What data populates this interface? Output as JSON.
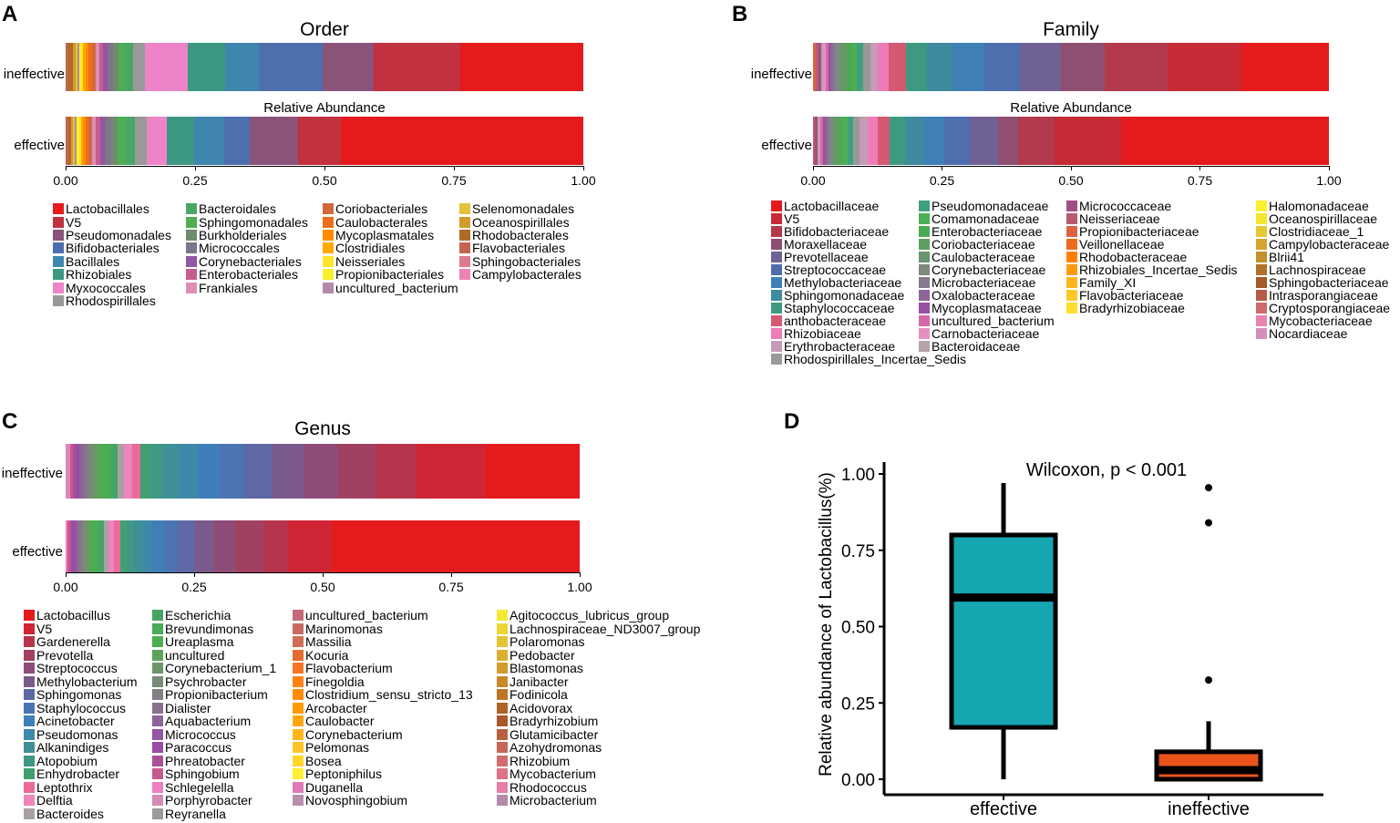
{
  "panels": {
    "A": {
      "label": "A",
      "title": "Order",
      "ra_label": "Relative Abundance",
      "rows": [
        {
          "name": "ineffective",
          "segments": [
            0.005,
            0.008,
            0.004,
            0.003,
            0.004,
            0.003,
            0.004,
            0.004,
            0.005,
            0.006,
            0.006,
            0.007,
            0.006,
            0.008,
            0.009,
            0.01,
            0.012,
            0.014,
            0.02,
            0.075,
            0.065,
            0.06,
            0.11,
            0.09,
            0.15,
            0.215
          ]
        },
        {
          "name": "effective",
          "segments": [
            0.005,
            0.006,
            0.004,
            0.003,
            0.004,
            0.004,
            0.004,
            0.005,
            0.005,
            0.006,
            0.007,
            0.007,
            0.008,
            0.01,
            0.012,
            0.014,
            0.016,
            0.018,
            0.022,
            0.04,
            0.055,
            0.06,
            0.05,
            0.095,
            0.085,
            0.48
          ]
        }
      ],
      "ticks": [
        "0.00",
        "0.25",
        "0.50",
        "0.75",
        "1.00"
      ],
      "legend_columns": [
        [
          {
            "label": "Lactobacillales",
            "color": "#E41A1C"
          },
          {
            "label": "V5",
            "color": "#C2313F"
          },
          {
            "label": "Pseudomonadales",
            "color": "#8A537A"
          },
          {
            "label": "Bifidobacteriales",
            "color": "#4E6FAE"
          },
          {
            "label": "Bacillales",
            "color": "#3F86AE"
          },
          {
            "label": "Rhizobiales",
            "color": "#3C9882"
          },
          {
            "label": "Myxococcales",
            "color": "#EE84C8"
          },
          {
            "label": "Rhodospirillales",
            "color": "#999999"
          }
        ],
        [
          {
            "label": "Bacteroidales",
            "color": "#4AA665"
          },
          {
            "label": "Sphingomonadales",
            "color": "#4FAE51"
          },
          {
            "label": "Burkholderiales",
            "color": "#6E8B6E"
          },
          {
            "label": "Micrococcales",
            "color": "#80748A"
          },
          {
            "label": "Corynebacteriales",
            "color": "#9156A4"
          },
          {
            "label": "Enterobacteriales",
            "color": "#C75C8E"
          },
          {
            "label": "Frankiales",
            "color": "#DE8FB3"
          }
        ],
        [
          {
            "label": "Coriobacteriales",
            "color": "#D2693C"
          },
          {
            "label": "Caulobacterales",
            "color": "#EA6F1E"
          },
          {
            "label": "Mycoplasmatales",
            "color": "#FF8C00"
          },
          {
            "label": "Clostridiales",
            "color": "#FFA800"
          },
          {
            "label": "Neisseriales",
            "color": "#FFE528"
          },
          {
            "label": "Propionibacteriales",
            "color": "#F7F02E"
          },
          {
            "label": "uncultured_bacterium",
            "color": "#B38AA8"
          }
        ],
        [
          {
            "label": "Selenomonadales",
            "color": "#E3C23A"
          },
          {
            "label": "Oceanospirillales",
            "color": "#D29C2C"
          },
          {
            "label": "Rhodobacterales",
            "color": "#AF6B28"
          },
          {
            "label": "Flavobacteriales",
            "color": "#C46452"
          },
          {
            "label": "Sphingobacteriales",
            "color": "#DD7A8F"
          },
          {
            "label": "Campylobacterales",
            "color": "#EE83B5"
          }
        ]
      ]
    },
    "B": {
      "label": "B",
      "title": "Family",
      "ra_label": "Relative Abundance",
      "rows": [
        {
          "name": "ineffective",
          "segments": [
            0.005,
            0.005,
            0.004,
            0.004,
            0.004,
            0.004,
            0.004,
            0.005,
            0.005,
            0.006,
            0.006,
            0.007,
            0.008,
            0.009,
            0.01,
            0.012,
            0.014,
            0.018,
            0.03,
            0.035,
            0.045,
            0.055,
            0.06,
            0.07,
            0.075,
            0.11,
            0.125,
            0.15
          ]
        },
        {
          "name": "effective",
          "segments": [
            0.004,
            0.004,
            0.004,
            0.003,
            0.004,
            0.004,
            0.005,
            0.005,
            0.005,
            0.006,
            0.007,
            0.008,
            0.009,
            0.01,
            0.012,
            0.016,
            0.02,
            0.024,
            0.03,
            0.035,
            0.04,
            0.05,
            0.055,
            0.04,
            0.07,
            0.13,
            0.404
          ]
        }
      ],
      "ticks": [
        "0.00",
        "0.25",
        "0.50",
        "0.75",
        "1.00"
      ],
      "legend_columns": [
        [
          {
            "label": "Lactobacillaceae",
            "color": "#E41A1C"
          },
          {
            "label": "V5",
            "color": "#C52A35"
          },
          {
            "label": "Bifidobacteriaceae",
            "color": "#B23A4C"
          },
          {
            "label": "Moraxellaceae",
            "color": "#8E4F73"
          },
          {
            "label": "Prevotellaceae",
            "color": "#6F6194"
          },
          {
            "label": "Streptococcaceae",
            "color": "#4E6FAE"
          },
          {
            "label": "Methylobacteriaceae",
            "color": "#3F80B7"
          },
          {
            "label": "Sphingomonadaceae",
            "color": "#3E8A9E"
          },
          {
            "label": "Staphylococcaceae",
            "color": "#3E9A7E"
          },
          {
            "label": "anthobacteraceae",
            "color": "#D45A73"
          },
          {
            "label": "Rhizobiaceae",
            "color": "#EE7CB8"
          },
          {
            "label": "Erythrobacteraceae",
            "color": "#C69AB8"
          },
          {
            "label": "Rhodospirillales_Incertae_Sedis",
            "color": "#999999"
          }
        ],
        [
          {
            "label": "Pseudomonadaceae",
            "color": "#3FA080"
          },
          {
            "label": "Comamonadaceae",
            "color": "#4DAE55"
          },
          {
            "label": "Enterobacteriaceae",
            "color": "#4AAA52"
          },
          {
            "label": "Coriobacteriaceae",
            "color": "#5F9E5E"
          },
          {
            "label": "Caulobacteraceae",
            "color": "#6A9470"
          },
          {
            "label": "Corynebacteriaceae",
            "color": "#7D8A7E"
          },
          {
            "label": "Microbacteriaceae",
            "color": "#867A90"
          },
          {
            "label": "Oxalobacteraceae",
            "color": "#8B6698"
          },
          {
            "label": "Mycoplasmataceae",
            "color": "#984EA3"
          },
          {
            "label": "uncultured_bacterium",
            "color": "#D768A7"
          },
          {
            "label": "Carnobacteriaceae",
            "color": "#E690BF"
          },
          {
            "label": "Bacteroidaceae",
            "color": "#B7A3AC"
          }
        ],
        [
          {
            "label": "Micrococcaceae",
            "color": "#A04F83"
          },
          {
            "label": "Neisseriaceae",
            "color": "#B85A6E"
          },
          {
            "label": "Propionibacteriaceae",
            "color": "#D96443"
          },
          {
            "label": "Veillonellaceae",
            "color": "#EE6A1E"
          },
          {
            "label": "Rhodobacteraceae",
            "color": "#FF7F00"
          },
          {
            "label": "Rhizobiales_Incertae_Sedis",
            "color": "#FF9A0F"
          },
          {
            "label": "Family_XI",
            "color": "#FFB41E"
          },
          {
            "label": "Flavobacteriaceae",
            "color": "#FFC82A"
          },
          {
            "label": "Bradyrhizobiaceae",
            "color": "#FFDC2E"
          }
        ],
        [
          {
            "label": "Halomonadaceae",
            "color": "#FFF02E"
          },
          {
            "label": "Oceanospirillaceae",
            "color": "#F6E532"
          },
          {
            "label": "Clostridiaceae_1",
            "color": "#E4C934"
          },
          {
            "label": "Campylobacteraceae",
            "color": "#D6A530"
          },
          {
            "label": "Blrii41",
            "color": "#C2902C"
          },
          {
            "label": "Lachnospiraceae",
            "color": "#B07028"
          },
          {
            "label": "Sphingobacteriaceae",
            "color": "#A35A2A"
          },
          {
            "label": "Intrasporangiaceae",
            "color": "#B65C46"
          },
          {
            "label": "Cryptosporangiaceae",
            "color": "#CF6B6A"
          },
          {
            "label": "Mycobacteriaceae",
            "color": "#EA82B0"
          },
          {
            "label": "Nocardiaceae",
            "color": "#D48FB8"
          }
        ]
      ]
    },
    "C": {
      "label": "C",
      "title": "Genus",
      "rows": [
        {
          "name": "ineffective",
          "segments": [
            0.004,
            0.004,
            0.004,
            0.004,
            0.004,
            0.004,
            0.004,
            0.005,
            0.005,
            0.005,
            0.006,
            0.007,
            0.008,
            0.009,
            0.01,
            0.011,
            0.012,
            0.014,
            0.016,
            0.02,
            0.025,
            0.03,
            0.035,
            0.04,
            0.045,
            0.05,
            0.055,
            0.06,
            0.065,
            0.11,
            0.15
          ]
        },
        {
          "name": "effective",
          "segments": [
            0.004,
            0.004,
            0.004,
            0.004,
            0.004,
            0.004,
            0.004,
            0.004,
            0.005,
            0.005,
            0.006,
            0.006,
            0.007,
            0.008,
            0.009,
            0.01,
            0.011,
            0.012,
            0.014,
            0.016,
            0.018,
            0.02,
            0.025,
            0.03,
            0.035,
            0.04,
            0.05,
            0.045,
            0.08,
            0.45
          ]
        }
      ],
      "ticks": [
        "0.00",
        "0.25",
        "0.50",
        "0.75",
        "1.00"
      ],
      "legend_columns": [
        [
          {
            "label": "Lactobacillus",
            "color": "#E41A1C"
          },
          {
            "label": "V5",
            "color": "#CF2534"
          },
          {
            "label": "Gardenerella",
            "color": "#B6354C"
          },
          {
            "label": "Prevotella",
            "color": "#A14162"
          },
          {
            "label": "Streptococcus",
            "color": "#8E4C78"
          },
          {
            "label": "Methylobacterium",
            "color": "#7A5A8C"
          },
          {
            "label": "Sphingomonas",
            "color": "#5E68A4"
          },
          {
            "label": "Staphylococcus",
            "color": "#4C73B2"
          },
          {
            "label": "Acinetobacter",
            "color": "#3F7EB8"
          },
          {
            "label": "Pseudomonas",
            "color": "#3E88A8"
          },
          {
            "label": "Alkanindiges",
            "color": "#3F8F96"
          },
          {
            "label": "Atopobium",
            "color": "#409884"
          },
          {
            "label": "Enhydrobacter",
            "color": "#42A070"
          },
          {
            "label": "Leptothrix",
            "color": "#EC6A9A"
          },
          {
            "label": "Delftia",
            "color": "#EE85BB"
          },
          {
            "label": "Bacteroides",
            "color": "#A9A0A6"
          }
        ],
        [
          {
            "label": "Escherichia",
            "color": "#45A563"
          },
          {
            "label": "Brevundimonas",
            "color": "#49AA58"
          },
          {
            "label": "Ureaplasma",
            "color": "#4DAE4E"
          },
          {
            "label": "uncultured",
            "color": "#5CA35A"
          },
          {
            "label": "Corynebacterium_1",
            "color": "#6B9768"
          },
          {
            "label": "Psychrobacter",
            "color": "#788B76"
          },
          {
            "label": "Propionibacterium",
            "color": "#827E83"
          },
          {
            "label": "Dialister",
            "color": "#8A7190"
          },
          {
            "label": "Aquabacterium",
            "color": "#8E639A"
          },
          {
            "label": "Micrococcus",
            "color": "#9256A2"
          },
          {
            "label": "Paracoccus",
            "color": "#984EA3"
          },
          {
            "label": "Phreatobacter",
            "color": "#A85098"
          },
          {
            "label": "Sphingobium",
            "color": "#C65A8D"
          },
          {
            "label": "Schlegelella",
            "color": "#EE7FC0"
          },
          {
            "label": "Porphyrobacter",
            "color": "#D58BB6"
          },
          {
            "label": "Reyranella",
            "color": "#9C9A9B"
          }
        ],
        [
          {
            "label": "uncultured_bacterium",
            "color": "#C7687A"
          },
          {
            "label": "Marinomonas",
            "color": "#C86A62"
          },
          {
            "label": "Massilia",
            "color": "#D06D52"
          },
          {
            "label": "Kocuria",
            "color": "#E46C32"
          },
          {
            "label": "Flavobacterium",
            "color": "#F57622"
          },
          {
            "label": "Finegoldia",
            "color": "#FF8212"
          },
          {
            "label": "Clostridium_sensu_stricto_13",
            "color": "#FF8C00"
          },
          {
            "label": "Arcobacter",
            "color": "#FF9A06"
          },
          {
            "label": "Caulobacter",
            "color": "#FFA710"
          },
          {
            "label": "Corynebacterium",
            "color": "#FFB51C"
          },
          {
            "label": "Pelomonas",
            "color": "#FFC426"
          },
          {
            "label": "Bosea",
            "color": "#FFD52C"
          },
          {
            "label": "Peptoniphilus",
            "color": "#FFEF30"
          },
          {
            "label": "Duganella",
            "color": "#E07AB4"
          },
          {
            "label": "Novosphingobium",
            "color": "#B890AC"
          }
        ],
        [
          {
            "label": "Agitococcus_lubricus_group",
            "color": "#F2EA34"
          },
          {
            "label": "Lachnospiraceae_ND3007_group",
            "color": "#EDD636"
          },
          {
            "label": "Polaromonas",
            "color": "#E4C434"
          },
          {
            "label": "Pedobacter",
            "color": "#DBB032"
          },
          {
            "label": "Blastomonas",
            "color": "#D29C2E"
          },
          {
            "label": "Janibacter",
            "color": "#C7892B"
          },
          {
            "label": "Fodinicola",
            "color": "#BD7628"
          },
          {
            "label": "Acidovorax",
            "color": "#B06228"
          },
          {
            "label": "Bradyrhizobium",
            "color": "#A9582C"
          },
          {
            "label": "Glutamicibacter",
            "color": "#B8603E"
          },
          {
            "label": "Azohydromonas",
            "color": "#C66656"
          },
          {
            "label": "Rhizobium",
            "color": "#D26C6E"
          },
          {
            "label": "Mycobacterium",
            "color": "#DE7488"
          },
          {
            "label": "Rhodococcus",
            "color": "#E87FA6"
          },
          {
            "label": "Microbacterium",
            "color": "#B38DA8"
          }
        ]
      ]
    },
    "D": {
      "label": "D",
      "annotation": "Wilcoxon, p < 0.001",
      "ylabel": "Relative abundance of Lactobacillus(%)",
      "yticks": [
        "0.00",
        "0.25",
        "0.50",
        "0.75",
        "1.00"
      ],
      "groups": [
        {
          "name": "effective",
          "color": "#16A6B2",
          "min": 0.0,
          "q1": 0.17,
          "median": 0.595,
          "q3": 0.8,
          "max": 0.97,
          "outliers": []
        },
        {
          "name": "ineffective",
          "color": "#E8531C",
          "min": 0.0,
          "q1": 0.0,
          "median": 0.03,
          "q3": 0.09,
          "max": 0.19,
          "outliers": [
            0.325,
            0.84,
            0.955
          ]
        }
      ]
    }
  }
}
